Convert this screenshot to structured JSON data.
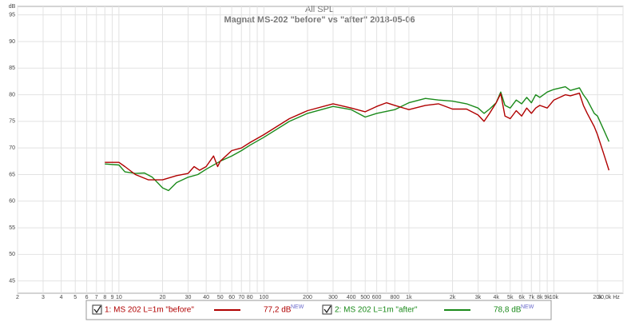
{
  "chart_data": {
    "type": "line",
    "title": "All SPL",
    "subtitle": "Magnat MS-202 \"before\" vs \"after\" 2018-05-06",
    "y_unit": "dB",
    "log_x": true,
    "grid": true,
    "xlim": [
      2,
      30000
    ],
    "ylim": [
      42.7,
      96.6
    ],
    "xticks": [
      2,
      3,
      4,
      5,
      6,
      7,
      8,
      9,
      10,
      20,
      30,
      40,
      50,
      60,
      70,
      80,
      100,
      200,
      300,
      400,
      500,
      600,
      800,
      {
        "value": 1000,
        "label": "1k"
      },
      {
        "value": 2000,
        "label": "2k"
      },
      {
        "value": 3000,
        "label": "3k"
      },
      {
        "value": 4000,
        "label": "4k"
      },
      {
        "value": 5000,
        "label": "5k"
      },
      {
        "value": 6000,
        "label": "6k"
      },
      {
        "value": 7000,
        "label": "7k"
      },
      {
        "value": 8000,
        "label": "8k"
      },
      {
        "value": 9000,
        "label": "9k"
      },
      {
        "value": 10000,
        "label": "10k"
      },
      {
        "value": 20000,
        "label": "20k"
      },
      {
        "value": 30000,
        "label": "30,0k Hz"
      }
    ],
    "x_minor_grid": [
      90,
      700
    ],
    "yticks": [
      45,
      50,
      55,
      60,
      65,
      70,
      75,
      80,
      85,
      90,
      95
    ],
    "series": [
      {
        "name": "1: MS 202 L=1m \"before\"",
        "color": "#b00000",
        "legend_value": "77,2 dB",
        "legend_badge": "NEW",
        "x": [
          8,
          10,
          11,
          13,
          16,
          20,
          25,
          30,
          33,
          36,
          40,
          45,
          48,
          50,
          60,
          70,
          80,
          100,
          150,
          200,
          300,
          400,
          500,
          600,
          700,
          800,
          1000,
          1300,
          1600,
          2000,
          2500,
          3000,
          3300,
          3600,
          4000,
          4300,
          4600,
          5000,
          5500,
          6000,
          6500,
          7000,
          7500,
          8000,
          9000,
          10000,
          12000,
          13000,
          15000,
          16000,
          17000,
          19000,
          20000,
          22000,
          24000
        ],
        "values": [
          67.3,
          67.3,
          66.5,
          65,
          64,
          64,
          64.8,
          65.2,
          66.5,
          65.8,
          66.5,
          68.5,
          66.5,
          67.5,
          69.5,
          70,
          71,
          72.5,
          75.5,
          77,
          78.3,
          77.5,
          76.8,
          77.8,
          78.5,
          78,
          77.2,
          78,
          78.3,
          77.3,
          77.3,
          76.2,
          75,
          76.5,
          78.5,
          80.2,
          76,
          75.5,
          77,
          76,
          77.5,
          76.5,
          77.5,
          78,
          77.5,
          79,
          80,
          79.8,
          80.3,
          78,
          76.5,
          74,
          72.5,
          69,
          65.8
        ]
      },
      {
        "name": "2: MS 202 L=1m \"after\"",
        "color": "#1a8a1a",
        "legend_value": "78,8 dB",
        "legend_badge": "NEW",
        "x": [
          8,
          10,
          11,
          13,
          15,
          17,
          20,
          22,
          25,
          30,
          35,
          40,
          50,
          60,
          70,
          80,
          100,
          150,
          200,
          300,
          400,
          500,
          600,
          800,
          1000,
          1300,
          1600,
          2000,
          2500,
          3000,
          3300,
          3600,
          4000,
          4300,
          4600,
          5000,
          5500,
          6000,
          6500,
          7000,
          7500,
          8000,
          9000,
          10000,
          12000,
          13000,
          15000,
          16000,
          17000,
          19000,
          20000,
          22000,
          24000
        ],
        "values": [
          67,
          66.8,
          65.5,
          65.2,
          65.3,
          64.5,
          62.5,
          62,
          63.5,
          64.5,
          65,
          66,
          67.5,
          68.5,
          69.5,
          70.5,
          72,
          75,
          76.5,
          77.8,
          77.2,
          75.8,
          76.5,
          77.2,
          78.5,
          79.3,
          79,
          78.8,
          78.3,
          77.5,
          76.5,
          77.3,
          78.5,
          80.5,
          78,
          77.5,
          79,
          78.3,
          79.5,
          78.5,
          80,
          79.5,
          80.5,
          81,
          81.5,
          80.8,
          81.3,
          80,
          79,
          76.5,
          76,
          73.5,
          71.2
        ]
      }
    ]
  }
}
